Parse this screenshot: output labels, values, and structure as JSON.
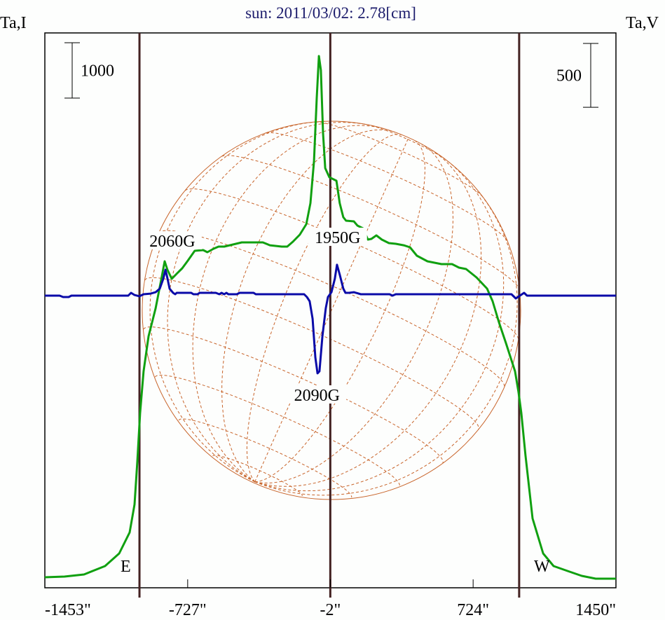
{
  "chart_data": {
    "type": "line",
    "title": "sun: 2011/03/02: 2.78[cm]",
    "ylabel_left": "Ta,I",
    "ylabel_right": "Ta,V",
    "xlim": [
      -1453,
      1450
    ],
    "xticks": [
      {
        "value": -1453,
        "label": "-1453\""
      },
      {
        "value": -727,
        "label": "-727\""
      },
      {
        "value": -2,
        "label": "-2\""
      },
      {
        "value": 724,
        "label": "724\""
      },
      {
        "value": 1450,
        "label": "1450\""
      }
    ],
    "scale_bars": {
      "left": {
        "value": 1000,
        "label": "1000"
      },
      "right": {
        "value": 500,
        "label": "500"
      }
    },
    "limb_markers": [
      -972,
      -2,
      958
    ],
    "limb_labels": {
      "east": "E",
      "west": "W"
    },
    "annotations": [
      {
        "label": "2060G",
        "x": -805
      },
      {
        "label": "1950G",
        "x": 35
      },
      {
        "label": "2090G",
        "x": -70
      }
    ],
    "series": [
      {
        "name": "I",
        "color": "#10a010",
        "axis": "left",
        "x": [
          -1453,
          -1353,
          -1254,
          -1147,
          -1075,
          -1022,
          -997,
          -983,
          -969,
          -951,
          -926,
          -890,
          -862,
          -844,
          -830,
          -808,
          -780,
          -755,
          -726,
          -691,
          -648,
          -627,
          -595,
          -570,
          -541,
          -452,
          -416,
          -345,
          -309,
          -249,
          -221,
          -192,
          -157,
          -124,
          -103,
          -85,
          -71,
          -60,
          -50,
          -39,
          -28,
          -7,
          29,
          46,
          64,
          78,
          118,
          136,
          164,
          189,
          207,
          232,
          260,
          296,
          331,
          371,
          403,
          438,
          492,
          563,
          617,
          652,
          688,
          741,
          795,
          823,
          855,
          891,
          937,
          955,
          969,
          990,
          1026,
          1080,
          1133,
          1204,
          1276,
          1347,
          1450
        ],
        "y": [
          190,
          203,
          241,
          392,
          620,
          1000,
          1506,
          2266,
          3152,
          3912,
          4545,
          5051,
          5558,
          5900,
          5748,
          5583,
          5684,
          5773,
          5912,
          6089,
          6102,
          6064,
          6127,
          6165,
          6165,
          6241,
          6241,
          6241,
          6190,
          6165,
          6165,
          6254,
          6381,
          6571,
          6950,
          7710,
          8849,
          9609,
          9355,
          8216,
          7583,
          7419,
          7355,
          6950,
          6697,
          6634,
          6621,
          6545,
          6495,
          6292,
          6305,
          6368,
          6292,
          6229,
          6216,
          6190,
          6153,
          6001,
          5900,
          5849,
          5849,
          5786,
          5760,
          5608,
          5406,
          5178,
          4798,
          4418,
          3912,
          3532,
          3152,
          2393,
          1253,
          620,
          392,
          304,
          215,
          165,
          165
        ]
      },
      {
        "name": "V",
        "color": "#0a0aa8",
        "axis": "right",
        "x": [
          -1453,
          -1378,
          -1360,
          -1332,
          -1318,
          -1029,
          -1015,
          -997,
          -972,
          -951,
          -915,
          -890,
          -869,
          -851,
          -840,
          -830,
          -819,
          -801,
          -790,
          -783,
          -709,
          -698,
          -677,
          -666,
          -584,
          -566,
          -555,
          -541,
          -530,
          -520,
          -477,
          -463,
          -392,
          -381,
          -135,
          -121,
          -107,
          -92,
          -78,
          -67,
          -57,
          -42,
          -25,
          -14,
          4,
          21,
          32,
          46,
          64,
          75,
          93,
          118,
          153,
          299,
          314,
          331,
          919,
          941,
          962,
          983,
          998,
          1450
        ],
        "y": [
          0,
          0,
          -11,
          -11,
          0,
          0,
          22,
          5,
          -5,
          11,
          16,
          27,
          55,
          132,
          203,
          137,
          55,
          22,
          11,
          22,
          22,
          11,
          11,
          22,
          22,
          11,
          22,
          11,
          22,
          11,
          11,
          22,
          22,
          11,
          11,
          -11,
          -44,
          -181,
          -483,
          -609,
          -593,
          -318,
          -99,
          -11,
          27,
          132,
          242,
          165,
          55,
          22,
          22,
          27,
          11,
          11,
          0,
          11,
          11,
          -22,
          0,
          22,
          0,
          0
        ]
      }
    ]
  }
}
